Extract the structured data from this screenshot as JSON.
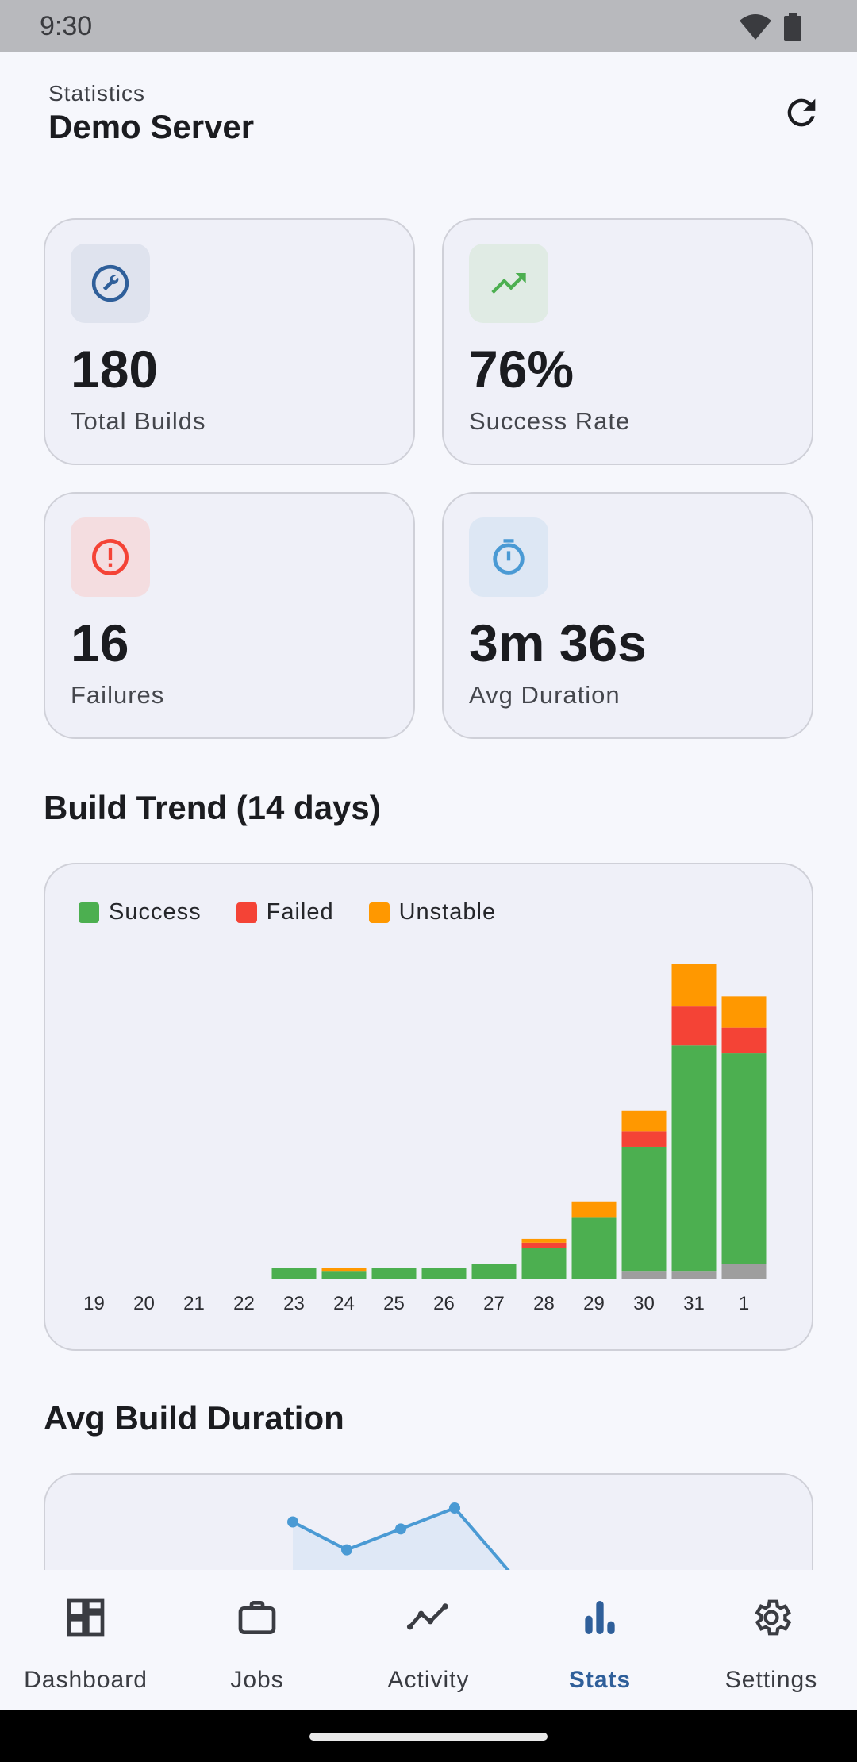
{
  "status_bar": {
    "time": "9:30"
  },
  "header": {
    "subtitle": "Statistics",
    "title": "Demo Server"
  },
  "stats": {
    "total_builds": {
      "value": "180",
      "label": "Total Builds",
      "icon": "wrench-icon"
    },
    "success_rate": {
      "value": "76%",
      "label": "Success Rate",
      "icon": "trending-up-icon"
    },
    "failures": {
      "value": "16",
      "label": "Failures",
      "icon": "error-circle-icon"
    },
    "avg_duration": {
      "value": "3m 36s",
      "label": "Avg Duration",
      "icon": "timer-icon"
    }
  },
  "build_trend": {
    "title": "Build Trend (14 days)",
    "legend": {
      "success": "Success",
      "failed": "Failed",
      "unstable": "Unstable"
    }
  },
  "avg_duration_section": {
    "title": "Avg Build Duration"
  },
  "chart_data": [
    {
      "type": "bar",
      "stacked": true,
      "title": "Build Trend (14 days)",
      "categories": [
        "19",
        "20",
        "21",
        "22",
        "23",
        "24",
        "25",
        "26",
        "27",
        "28",
        "29",
        "30",
        "31",
        "1"
      ],
      "series": [
        {
          "name": "",
          "color": "#9e9e9e",
          "values": [
            0,
            0,
            0,
            0,
            0,
            0,
            0,
            0,
            0,
            0,
            0,
            1,
            1,
            2
          ]
        },
        {
          "name": "Success",
          "color": "#4caf50",
          "values": [
            0,
            0,
            0,
            0,
            1.5,
            1,
            1.5,
            1.5,
            2,
            4,
            8,
            16,
            29,
            27
          ]
        },
        {
          "name": "Failed",
          "color": "#f44336",
          "values": [
            0,
            0,
            0,
            0,
            0,
            0,
            0,
            0,
            0,
            0.7,
            0,
            2,
            5,
            3.3
          ]
        },
        {
          "name": "Unstable",
          "color": "#ff9800",
          "values": [
            0,
            0,
            0,
            0,
            0,
            0.5,
            0,
            0,
            0,
            0.5,
            2,
            2.6,
            5.5,
            4
          ]
        }
      ],
      "ylim": [
        0,
        40
      ],
      "grid": false,
      "legend": "top-left"
    },
    {
      "type": "line",
      "title": "Avg Build Duration",
      "note_partially_visible": true,
      "series": [
        {
          "name": "",
          "color": "#4a9ad4",
          "values": [
            3.2,
            2.4,
            3.0,
            3.6,
            1.8
          ]
        }
      ]
    }
  ],
  "nav": {
    "items": [
      {
        "label": "Dashboard",
        "icon": "dashboard-icon"
      },
      {
        "label": "Jobs",
        "icon": "briefcase-icon"
      },
      {
        "label": "Activity",
        "icon": "activity-icon"
      },
      {
        "label": "Stats",
        "icon": "bar-chart-icon"
      },
      {
        "label": "Settings",
        "icon": "gear-icon"
      }
    ],
    "active_index": 3
  },
  "colors": {
    "accent": "#2f5f9a",
    "success": "#4caf50",
    "failed": "#f44336",
    "unstable": "#ff9800"
  }
}
